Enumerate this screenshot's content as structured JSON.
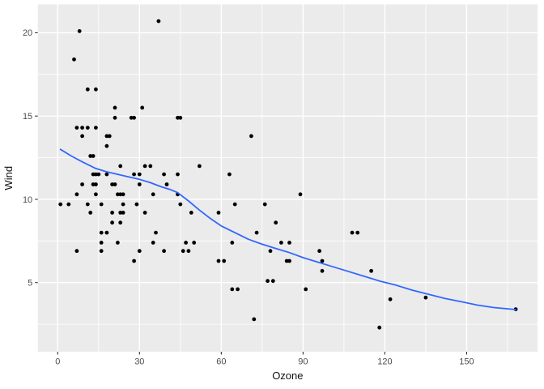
{
  "figure": {
    "background": "#ffffff",
    "panel_background": "#ebebeb",
    "grid_color": "#ffffff",
    "point_color": "#000000",
    "smooth_line_color": "#3366ff",
    "tick_label_color": "#4d4d4d",
    "axis_title_color": "#111111",
    "tick_mark_color": "#333333"
  },
  "chart_data": {
    "type": "scatter",
    "title": "",
    "xlabel": "Ozone",
    "ylabel": "Wind",
    "x_ticks": [
      0,
      30,
      60,
      90,
      120,
      150
    ],
    "x_minor_ticks": [
      15,
      45,
      75,
      105,
      135,
      165
    ],
    "y_ticks": [
      5,
      10,
      15,
      20
    ],
    "y_minor_ticks": [
      2.5,
      7.5,
      12.5,
      17.5
    ],
    "xlim": [
      -7.3,
      176.0
    ],
    "ylim": [
      0.85,
      21.7
    ],
    "grid": true,
    "legend": "none",
    "points": [
      [
        37,
        20.7
      ],
      [
        8,
        20.1
      ],
      [
        6,
        18.4
      ],
      [
        11,
        16.6
      ],
      [
        14,
        16.6
      ],
      [
        21,
        15.5
      ],
      [
        31,
        15.5
      ],
      [
        21,
        14.9
      ],
      [
        27,
        14.9
      ],
      [
        28,
        14.9
      ],
      [
        44,
        14.9
      ],
      [
        45,
        14.9
      ],
      [
        7,
        14.3
      ],
      [
        9,
        14.3
      ],
      [
        11,
        14.3
      ],
      [
        14,
        14.3
      ],
      [
        9,
        13.8
      ],
      [
        18,
        13.8
      ],
      [
        19,
        13.8
      ],
      [
        71,
        13.8
      ],
      [
        18,
        13.2
      ],
      [
        12,
        12.6
      ],
      [
        13,
        12.6
      ],
      [
        23,
        12.0
      ],
      [
        32,
        12.0
      ],
      [
        34,
        12.0
      ],
      [
        52,
        12.0
      ],
      [
        13,
        11.5
      ],
      [
        14,
        11.5
      ],
      [
        15,
        11.5
      ],
      [
        18,
        11.5
      ],
      [
        28,
        11.5
      ],
      [
        30,
        11.5
      ],
      [
        39,
        11.5
      ],
      [
        44,
        11.5
      ],
      [
        63,
        11.5
      ],
      [
        9,
        10.9
      ],
      [
        13,
        10.9
      ],
      [
        14,
        10.9
      ],
      [
        20,
        10.9
      ],
      [
        21,
        10.9
      ],
      [
        30,
        10.9
      ],
      [
        40,
        10.9
      ],
      [
        7,
        10.3
      ],
      [
        14,
        10.3
      ],
      [
        22,
        10.3
      ],
      [
        23,
        10.3
      ],
      [
        24,
        10.3
      ],
      [
        35,
        10.3
      ],
      [
        44,
        10.3
      ],
      [
        89,
        10.3
      ],
      [
        1,
        9.7
      ],
      [
        4,
        9.7
      ],
      [
        11,
        9.7
      ],
      [
        16,
        9.7
      ],
      [
        24,
        9.7
      ],
      [
        29,
        9.7
      ],
      [
        45,
        9.7
      ],
      [
        65,
        9.7
      ],
      [
        76,
        9.7
      ],
      [
        12,
        9.2
      ],
      [
        20,
        9.2
      ],
      [
        23,
        9.2
      ],
      [
        24,
        9.2
      ],
      [
        32,
        9.2
      ],
      [
        49,
        9.2
      ],
      [
        59,
        9.2
      ],
      [
        20,
        8.6
      ],
      [
        23,
        8.6
      ],
      [
        80,
        8.6
      ],
      [
        16,
        8.0
      ],
      [
        18,
        8.0
      ],
      [
        36,
        8.0
      ],
      [
        73,
        8.0
      ],
      [
        108,
        8.0
      ],
      [
        110,
        8.0
      ],
      [
        16,
        7.4
      ],
      [
        22,
        7.4
      ],
      [
        35,
        7.4
      ],
      [
        47,
        7.4
      ],
      [
        50,
        7.4
      ],
      [
        64,
        7.4
      ],
      [
        82,
        7.4
      ],
      [
        85,
        7.4
      ],
      [
        7,
        6.9
      ],
      [
        16,
        6.9
      ],
      [
        30,
        6.9
      ],
      [
        39,
        6.9
      ],
      [
        46,
        6.9
      ],
      [
        48,
        6.9
      ],
      [
        78,
        6.9
      ],
      [
        96,
        6.9
      ],
      [
        28,
        6.3
      ],
      [
        59,
        6.3
      ],
      [
        61,
        6.3
      ],
      [
        84,
        6.3
      ],
      [
        85,
        6.3
      ],
      [
        97,
        6.3
      ],
      [
        97,
        5.7
      ],
      [
        115,
        5.7
      ],
      [
        77,
        5.1
      ],
      [
        79,
        5.1
      ],
      [
        64,
        4.6
      ],
      [
        66,
        4.6
      ],
      [
        91,
        4.6
      ],
      [
        122,
        4.0
      ],
      [
        135,
        4.1
      ],
      [
        168,
        3.4
      ],
      [
        72,
        2.8
      ],
      [
        118,
        2.3
      ]
    ],
    "smooth_line": [
      [
        1,
        13.0
      ],
      [
        5,
        12.6
      ],
      [
        9,
        12.25
      ],
      [
        14,
        11.85
      ],
      [
        18,
        11.65
      ],
      [
        22,
        11.5
      ],
      [
        26,
        11.35
      ],
      [
        30,
        11.2
      ],
      [
        34,
        11.0
      ],
      [
        38,
        10.75
      ],
      [
        41,
        10.6
      ],
      [
        44,
        10.4
      ],
      [
        48,
        9.9
      ],
      [
        52,
        9.35
      ],
      [
        56,
        8.85
      ],
      [
        60,
        8.4
      ],
      [
        65,
        8.0
      ],
      [
        70,
        7.6
      ],
      [
        75,
        7.3
      ],
      [
        80,
        7.05
      ],
      [
        85,
        6.8
      ],
      [
        90,
        6.5
      ],
      [
        95,
        6.25
      ],
      [
        100,
        6.0
      ],
      [
        106,
        5.7
      ],
      [
        112,
        5.4
      ],
      [
        118,
        5.1
      ],
      [
        124,
        4.85
      ],
      [
        130,
        4.55
      ],
      [
        136,
        4.3
      ],
      [
        142,
        4.05
      ],
      [
        148,
        3.85
      ],
      [
        154,
        3.65
      ],
      [
        160,
        3.5
      ],
      [
        168,
        3.38
      ]
    ]
  }
}
